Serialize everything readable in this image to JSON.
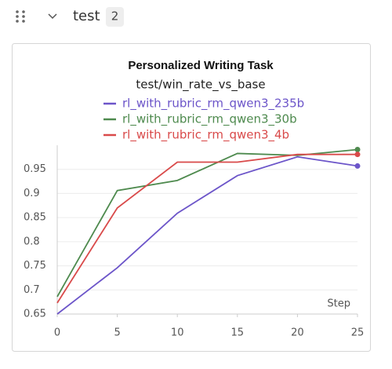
{
  "section": {
    "title": "test",
    "count": 2
  },
  "chart_data": {
    "type": "line",
    "title": "Personalized Writing Task",
    "subtitle": "test/win_rate_vs_base",
    "x_label": "Step",
    "x": [
      0,
      5,
      10,
      15,
      20,
      25
    ],
    "series": [
      {
        "name": "rl_with_rubric_rm_qwen3_235b",
        "color": "#6c55c9",
        "values": [
          0.65,
          0.746,
          0.859,
          0.937,
          0.976,
          0.957
        ]
      },
      {
        "name": "rl_with_rubric_rm_qwen3_30b",
        "color": "#4e8a4e",
        "values": [
          0.686,
          0.906,
          0.927,
          0.983,
          0.979,
          0.991
        ]
      },
      {
        "name": "rl_with_rubric_rm_qwen3_4b",
        "color": "#d94a4a",
        "values": [
          0.673,
          0.87,
          0.965,
          0.965,
          0.981,
          0.981
        ]
      }
    ],
    "xlim": [
      0,
      25
    ],
    "xticks": [
      0,
      5,
      10,
      15,
      20,
      25
    ],
    "ylim": [
      0.65,
      1.0
    ],
    "yticks": [
      0.65,
      0.7,
      0.75,
      0.8,
      0.85,
      0.9,
      0.95
    ],
    "grid": true
  }
}
